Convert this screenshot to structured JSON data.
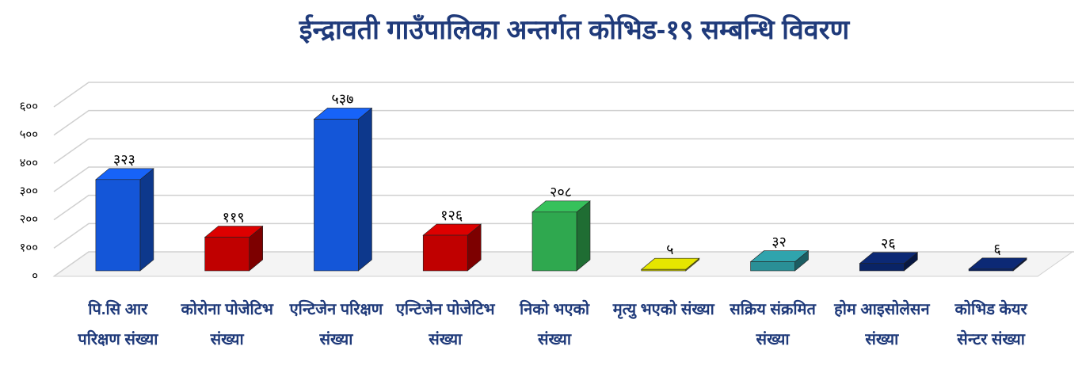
{
  "chart_data": {
    "type": "bar3d",
    "title": "ईन्द्रावती गाउँपालिका अन्तर्गत कोभिड-१९ सम्बन्धि  विवरण",
    "categories": [
      "पि.सि आर परिक्षण संख्या",
      "कोरोना पोजेटिभ संख्या",
      "एन्टिजेन परिक्षण संख्या",
      "एन्टिजेन पोजेटिभ संख्या",
      "निको भएको संख्या",
      "मृत्यु भएको संख्या",
      "सक्रिय संक्रमित संख्या",
      "होम आइसोलेसन संख्या",
      "कोभिड केयर सेन्टर संख्या"
    ],
    "values": [
      323,
      119,
      537,
      126,
      208,
      5,
      32,
      26,
      6
    ],
    "value_labels": [
      "३२३",
      "११९",
      "५३७",
      "१२६",
      "२०८",
      "५",
      "३२",
      "२६",
      "६"
    ],
    "colors": [
      "#1456d8",
      "#c00000",
      "#1456d8",
      "#c00000",
      "#2fa84f",
      "#c8c800",
      "#2a8f96",
      "#0a2466",
      "#0a2466"
    ],
    "ylim": [
      0,
      600
    ],
    "yticks": [
      {
        "value": 0,
        "label": "०"
      },
      {
        "value": 100,
        "label": "१००"
      },
      {
        "value": 200,
        "label": "२००"
      },
      {
        "value": 300,
        "label": "३००"
      },
      {
        "value": 400,
        "label": "४००"
      },
      {
        "value": 500,
        "label": "५००"
      },
      {
        "value": 600,
        "label": "६००"
      }
    ],
    "grid": true
  }
}
